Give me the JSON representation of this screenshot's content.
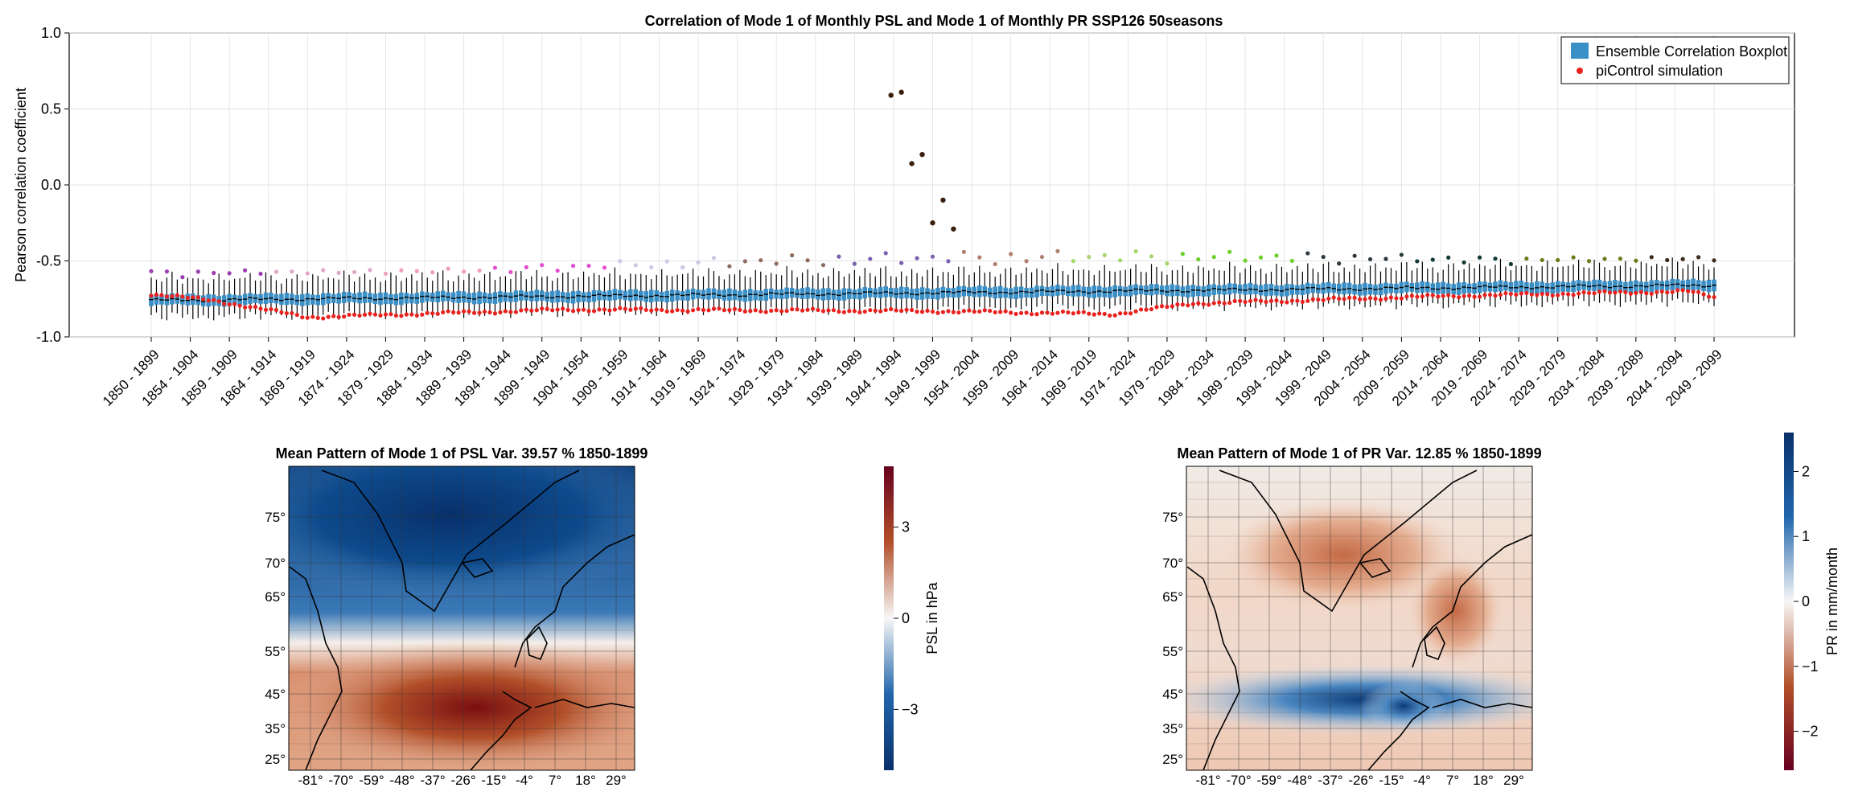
{
  "chart_data": [
    {
      "type": "box",
      "title": "Correlation of Mode 1 of Monthly PSL and Mode 1 of Monthly PR SSP126 50seasons",
      "ylabel": "Pearson correlation coefficient",
      "xlabel": "",
      "ylim": [
        -1.0,
        1.0
      ],
      "yticks": [
        "1.0",
        "0.5",
        "0.0",
        "-0.5",
        "-1.0"
      ],
      "grid": true,
      "legend_position": "top-right",
      "x_tick_labels": [
        "1850 - 1899",
        "1854 - 1904",
        "1859 - 1909",
        "1864 - 1914",
        "1869 - 1919",
        "1874 - 1924",
        "1879 - 1929",
        "1884 - 1934",
        "1889 - 1939",
        "1894 - 1944",
        "1899 - 1949",
        "1904 - 1954",
        "1909 - 1959",
        "1914 - 1964",
        "1919 - 1969",
        "1924 - 1974",
        "1929 - 1979",
        "1934 - 1984",
        "1939 - 1989",
        "1944 - 1994",
        "1949 - 1999",
        "1954 - 2004",
        "1959 - 2009",
        "1964 - 2014",
        "1969 - 2019",
        "1974 - 2024",
        "1979 - 2029",
        "1984 - 2034",
        "1989 - 2039",
        "1994 - 2044",
        "1999 - 2049",
        "2004 - 2054",
        "2009 - 2059",
        "2014 - 2064",
        "2019 - 2069",
        "2024 - 2074",
        "2029 - 2079",
        "2034 - 2084",
        "2039 - 2089",
        "2044 - 2094",
        "2049 - 2099"
      ],
      "series": [
        {
          "name": "Ensemble Correlation Boxplot",
          "color": "#3a8fc6"
        },
        {
          "name": "piControl simulation",
          "color": "#e8231f"
        }
      ],
      "median_trend": {
        "start": -0.76,
        "end": -0.66
      },
      "picontrol_trend_points": [
        [
          0,
          -0.72
        ],
        [
          12,
          -0.76
        ],
        [
          30,
          -0.87
        ],
        [
          80,
          -0.82
        ],
        [
          150,
          -0.83
        ],
        [
          185,
          -0.85
        ],
        [
          200,
          -0.78
        ],
        [
          250,
          -0.73
        ],
        [
          295,
          -0.7
        ],
        [
          300,
          -0.74
        ]
      ],
      "outlier_points": [
        {
          "x": 142,
          "y": 0.59,
          "color": "#3a1f0c"
        },
        {
          "x": 144,
          "y": 0.61,
          "color": "#3a1f0c"
        },
        {
          "x": 146,
          "y": 0.14,
          "color": "#3a1f0c"
        },
        {
          "x": 148,
          "y": 0.2,
          "color": "#3a1f0c"
        },
        {
          "x": 150,
          "y": -0.25,
          "color": "#3a1f0c"
        },
        {
          "x": 152,
          "y": -0.1,
          "color": "#3a1f0c"
        },
        {
          "x": 154,
          "y": -0.29,
          "color": "#3a1f0c"
        }
      ]
    },
    {
      "type": "heatmap",
      "title": "Mean Pattern of Mode 1 of PSL Var. 39.57 % 1850-1899",
      "colorbar_label": "PSL in hPa",
      "colorbar_ticks": [
        "3",
        "0",
        "−3"
      ],
      "colorbar_range": [
        -5,
        5
      ],
      "colormap": [
        "#08306b",
        "#2166ac",
        "#f7f7f7",
        "#b2502a",
        "#67001f"
      ],
      "x_ticks": [
        "-81°",
        "-70°",
        "-59°",
        "-48°",
        "-37°",
        "-26°",
        "-15°",
        "-4°",
        "7°",
        "18°",
        "29°"
      ],
      "y_ticks": [
        "75°",
        "70°",
        "65°",
        "55°",
        "45°",
        "35°",
        "25°"
      ]
    },
    {
      "type": "heatmap",
      "title": "Mean Pattern of Mode 1 of PR Var. 12.85 % 1850-1899",
      "colorbar_label": "PR in mm/month",
      "colorbar_ticks": [
        "2",
        "1",
        "0",
        "−1",
        "−2"
      ],
      "colorbar_range": [
        -2.6,
        2.6
      ],
      "colormap": [
        "#08306b",
        "#2166ac",
        "#f7f7f7",
        "#b2502a",
        "#67001f"
      ],
      "x_ticks": [
        "-81°",
        "-70°",
        "-59°",
        "-48°",
        "-37°",
        "-26°",
        "-15°",
        "-4°",
        "7°",
        "18°",
        "29°"
      ],
      "y_ticks": [
        "75°",
        "70°",
        "65°",
        "55°",
        "45°",
        "35°",
        "25°"
      ]
    }
  ]
}
